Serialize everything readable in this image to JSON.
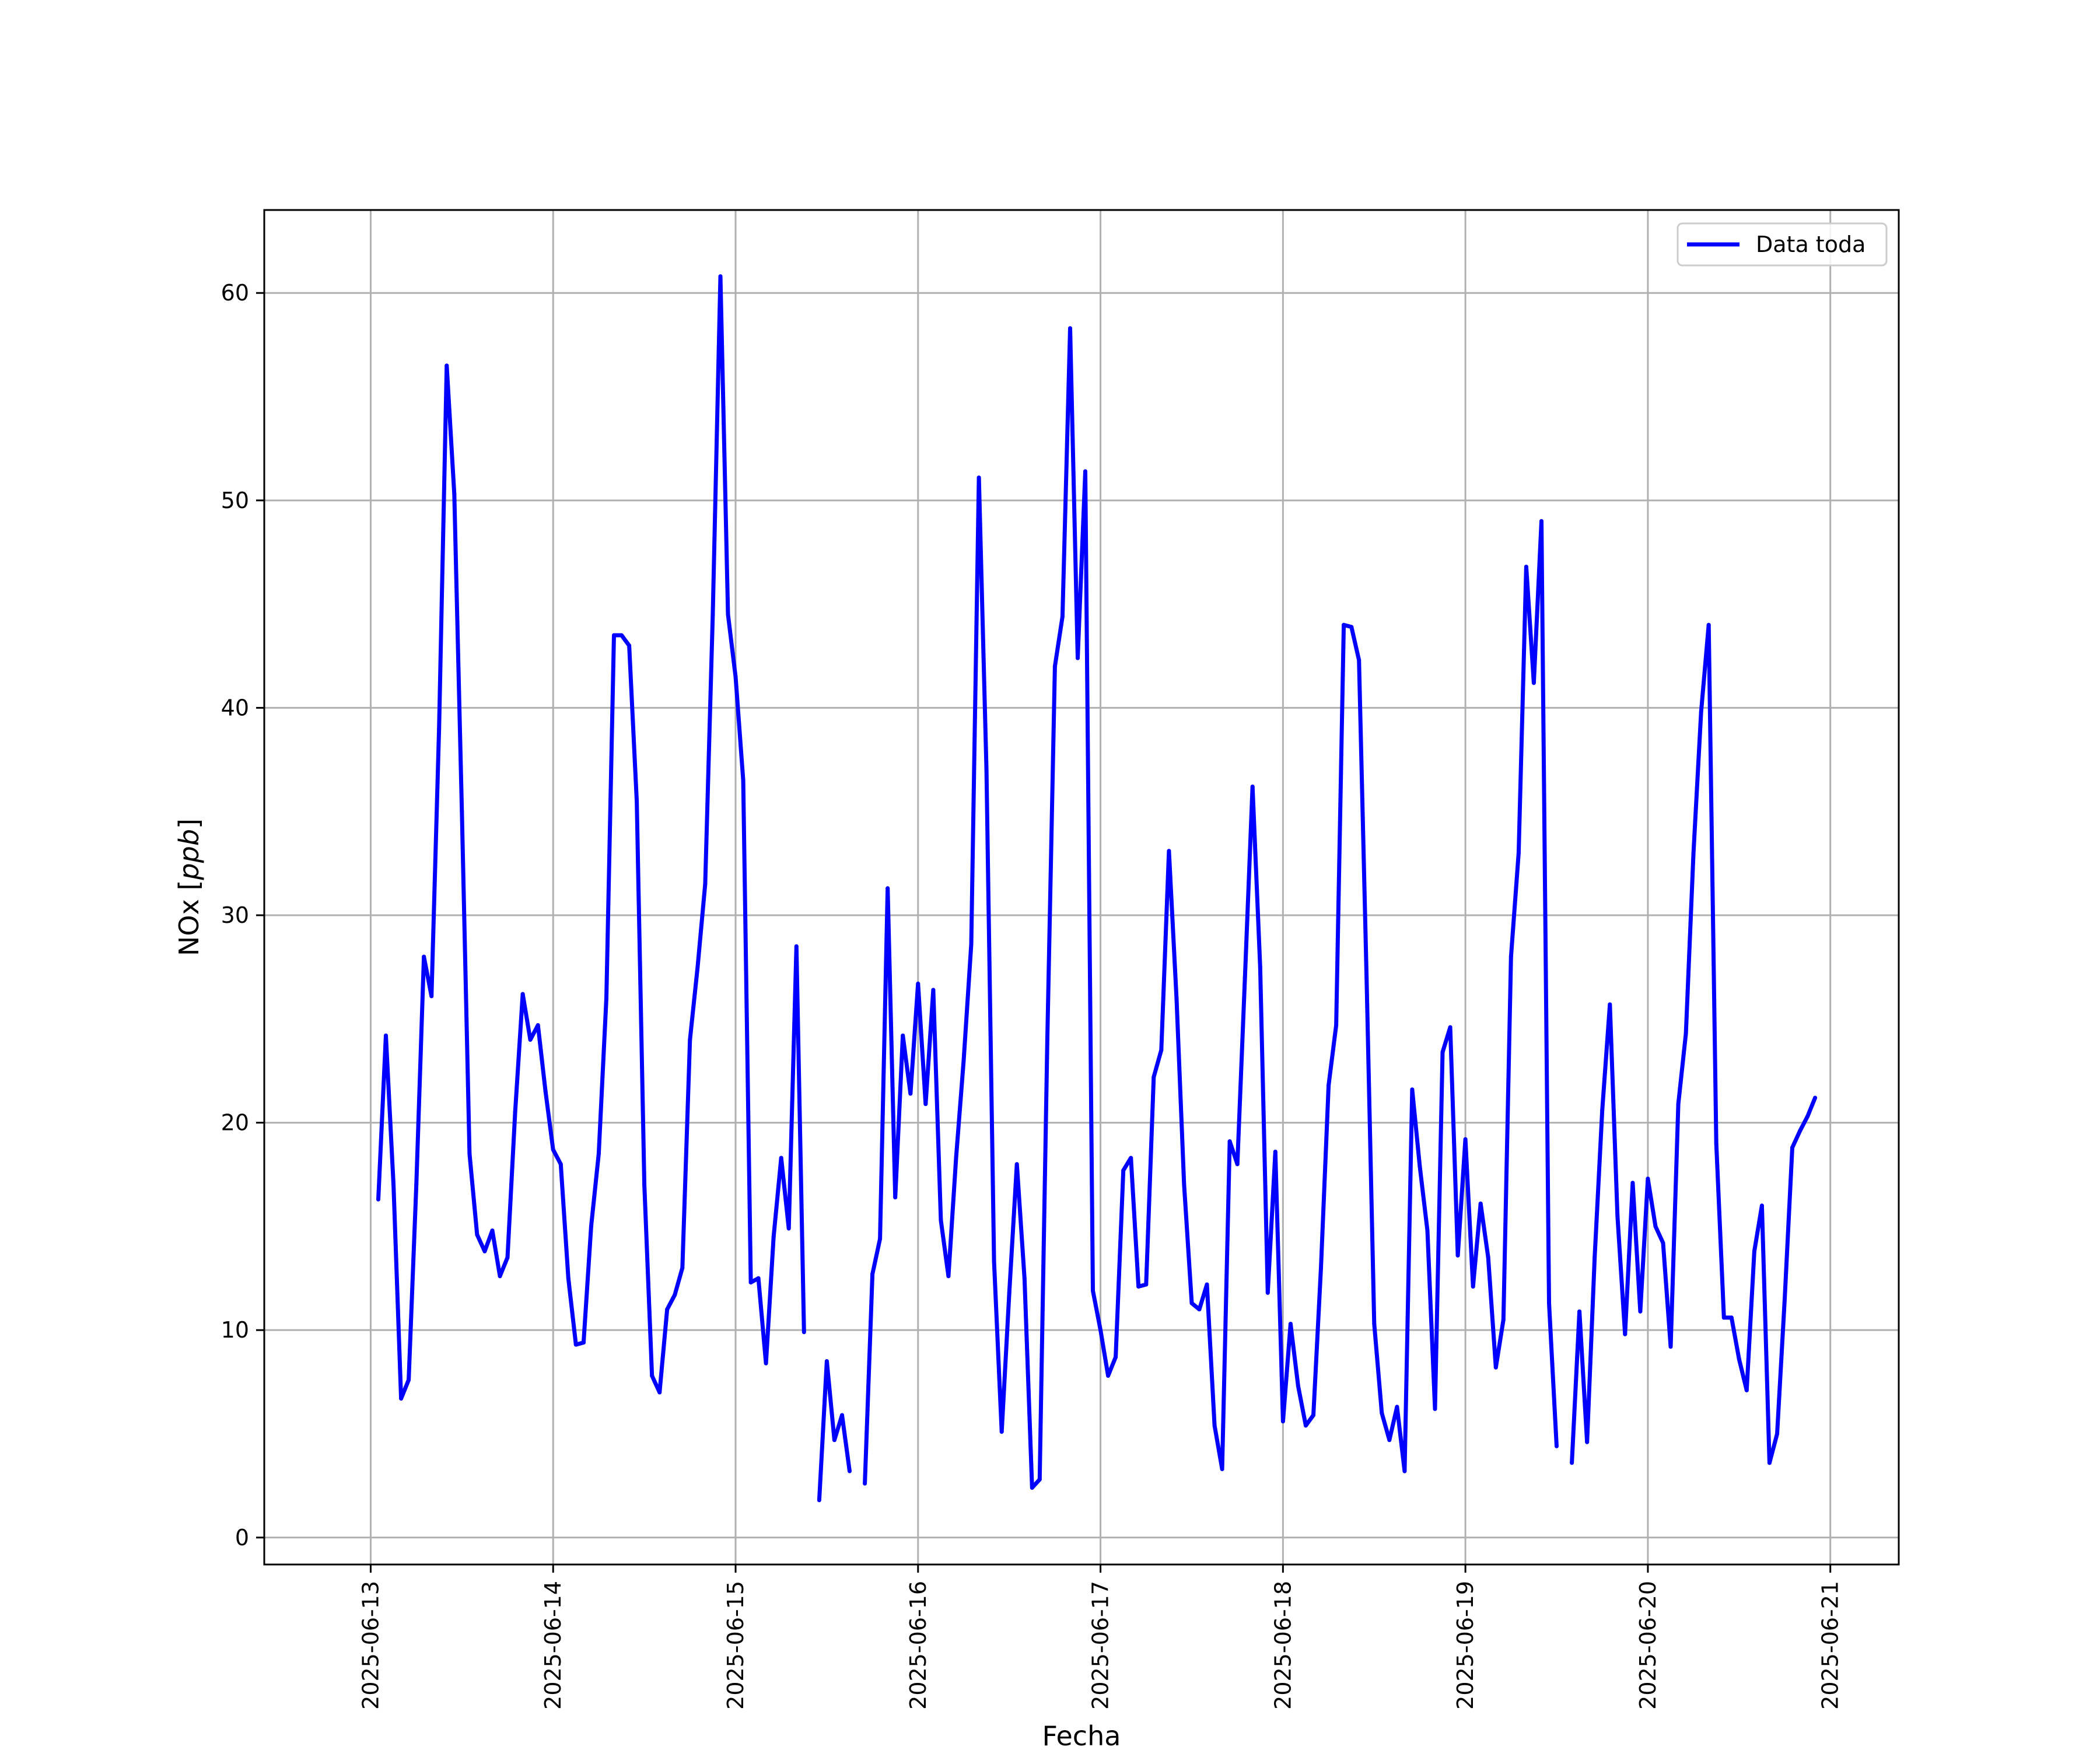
{
  "chart_data": {
    "type": "line",
    "xlabel": "Fecha",
    "ylabel_main": "NOx",
    "ylabel_unit": "ppb",
    "x_ticks": [
      "2025-06-13",
      "2025-06-14",
      "2025-06-15",
      "2025-06-16",
      "2025-06-17",
      "2025-06-18",
      "2025-06-19",
      "2025-06-20",
      "2025-06-21"
    ],
    "y_ticks": [
      0,
      10,
      20,
      30,
      40,
      50,
      60
    ],
    "xlim": [
      "2025-06-12T10:00",
      "2025-06-21T09:00"
    ],
    "ylim": [
      -1.3,
      64
    ],
    "grid": true,
    "legend": "top-right",
    "series": [
      {
        "name": "Data toda",
        "color": "#0000ff",
        "points": [
          [
            "2025-06-13T01:00",
            16.3
          ],
          [
            "2025-06-13T02:00",
            24.2
          ],
          [
            "2025-06-13T03:00",
            17.0
          ],
          [
            "2025-06-13T04:00",
            6.7
          ],
          [
            "2025-06-13T05:00",
            7.6
          ],
          [
            "2025-06-13T06:00",
            17.0
          ],
          [
            "2025-06-13T07:00",
            28.0
          ],
          [
            "2025-06-13T08:00",
            26.1
          ],
          [
            "2025-06-13T09:00",
            39.0
          ],
          [
            "2025-06-13T10:00",
            56.5
          ],
          [
            "2025-06-13T11:00",
            50.3
          ],
          [
            "2025-06-13T12:00",
            35.0
          ],
          [
            "2025-06-13T13:00",
            18.5
          ],
          [
            "2025-06-13T14:00",
            14.6
          ],
          [
            "2025-06-13T15:00",
            13.8
          ],
          [
            "2025-06-13T16:00",
            14.8
          ],
          [
            "2025-06-13T17:00",
            12.6
          ],
          [
            "2025-06-13T18:00",
            13.5
          ],
          [
            "2025-06-13T19:00",
            20.5
          ],
          [
            "2025-06-13T20:00",
            26.2
          ],
          [
            "2025-06-13T21:00",
            24.0
          ],
          [
            "2025-06-13T22:00",
            24.7
          ],
          [
            "2025-06-13T23:00",
            21.5
          ],
          [
            "2025-06-14T00:00",
            18.7
          ],
          [
            "2025-06-14T01:00",
            18.0
          ],
          [
            "2025-06-14T02:00",
            12.5
          ],
          [
            "2025-06-14T03:00",
            9.3
          ],
          [
            "2025-06-14T04:00",
            9.4
          ],
          [
            "2025-06-14T05:00",
            15.0
          ],
          [
            "2025-06-14T06:00",
            18.5
          ],
          [
            "2025-06-14T07:00",
            26.0
          ],
          [
            "2025-06-14T08:00",
            43.5
          ],
          [
            "2025-06-14T09:00",
            43.5
          ],
          [
            "2025-06-14T10:00",
            43.0
          ],
          [
            "2025-06-14T11:00",
            35.5
          ],
          [
            "2025-06-14T12:00",
            17.0
          ],
          [
            "2025-06-14T13:00",
            7.8
          ],
          [
            "2025-06-14T14:00",
            7.0
          ],
          [
            "2025-06-14T15:00",
            11.0
          ],
          [
            "2025-06-14T16:00",
            11.7
          ],
          [
            "2025-06-14T17:00",
            13.0
          ],
          [
            "2025-06-14T18:00",
            24.0
          ],
          [
            "2025-06-14T19:00",
            27.5
          ],
          [
            "2025-06-14T20:00",
            31.5
          ],
          [
            "2025-06-14T21:00",
            44.5
          ],
          [
            "2025-06-14T22:00",
            60.8
          ],
          [
            "2025-06-14T23:00",
            44.5
          ],
          [
            "2025-06-15T00:00",
            41.5
          ],
          [
            "2025-06-15T01:00",
            36.5
          ],
          [
            "2025-06-15T02:00",
            12.3
          ],
          [
            "2025-06-15T03:00",
            12.5
          ],
          [
            "2025-06-15T04:00",
            8.4
          ],
          [
            "2025-06-15T05:00",
            14.5
          ],
          [
            "2025-06-15T06:00",
            18.3
          ],
          [
            "2025-06-15T07:00",
            14.9
          ],
          [
            "2025-06-15T08:00",
            28.5
          ],
          [
            "2025-06-15T09:00",
            9.9
          ],
          null,
          [
            "2025-06-15T11:00",
            1.8
          ],
          [
            "2025-06-15T12:00",
            8.5
          ],
          [
            "2025-06-15T13:00",
            4.7
          ],
          [
            "2025-06-15T14:00",
            5.9
          ],
          [
            "2025-06-15T15:00",
            3.2
          ],
          null,
          [
            "2025-06-15T17:00",
            2.6
          ],
          [
            "2025-06-15T18:00",
            12.7
          ],
          [
            "2025-06-15T19:00",
            14.4
          ],
          [
            "2025-06-15T20:00",
            31.3
          ],
          [
            "2025-06-15T21:00",
            16.4
          ],
          [
            "2025-06-15T22:00",
            24.2
          ],
          [
            "2025-06-15T23:00",
            21.4
          ],
          [
            "2025-06-16T00:00",
            26.7
          ],
          [
            "2025-06-16T01:00",
            20.9
          ],
          [
            "2025-06-16T02:00",
            26.4
          ],
          [
            "2025-06-16T03:00",
            15.3
          ],
          [
            "2025-06-16T04:00",
            12.6
          ],
          [
            "2025-06-16T05:00",
            18.3
          ],
          [
            "2025-06-16T06:00",
            23.0
          ],
          [
            "2025-06-16T07:00",
            28.6
          ],
          [
            "2025-06-16T08:00",
            51.1
          ],
          [
            "2025-06-16T09:00",
            37.0
          ],
          [
            "2025-06-16T10:00",
            13.3
          ],
          [
            "2025-06-16T11:00",
            5.1
          ],
          [
            "2025-06-16T12:00",
            11.8
          ],
          [
            "2025-06-16T13:00",
            18.0
          ],
          [
            "2025-06-16T14:00",
            12.5
          ],
          [
            "2025-06-16T15:00",
            2.4
          ],
          [
            "2025-06-16T16:00",
            2.8
          ],
          [
            "2025-06-16T17:00",
            24.0
          ],
          [
            "2025-06-16T18:00",
            42.0
          ],
          [
            "2025-06-16T19:00",
            44.4
          ],
          [
            "2025-06-16T20:00",
            58.3
          ],
          [
            "2025-06-16T21:00",
            42.4
          ],
          [
            "2025-06-16T22:00",
            51.4
          ],
          [
            "2025-06-16T23:00",
            11.9
          ],
          [
            "2025-06-17T00:00",
            10.0
          ],
          [
            "2025-06-17T01:00",
            7.8
          ],
          [
            "2025-06-17T02:00",
            8.7
          ],
          [
            "2025-06-17T03:00",
            17.7
          ],
          [
            "2025-06-17T04:00",
            18.3
          ],
          [
            "2025-06-17T05:00",
            12.1
          ],
          [
            "2025-06-17T06:00",
            12.2
          ],
          [
            "2025-06-17T07:00",
            22.2
          ],
          [
            "2025-06-17T08:00",
            23.5
          ],
          [
            "2025-06-17T09:00",
            33.1
          ],
          [
            "2025-06-17T10:00",
            26.0
          ],
          [
            "2025-06-17T11:00",
            17.0
          ],
          [
            "2025-06-17T12:00",
            11.3
          ],
          [
            "2025-06-17T13:00",
            11.0
          ],
          [
            "2025-06-17T14:00",
            12.2
          ],
          [
            "2025-06-17T15:00",
            5.4
          ],
          [
            "2025-06-17T16:00",
            3.3
          ],
          [
            "2025-06-17T17:00",
            19.1
          ],
          [
            "2025-06-17T18:00",
            18.0
          ],
          [
            "2025-06-17T19:00",
            27.0
          ],
          [
            "2025-06-17T20:00",
            36.2
          ],
          [
            "2025-06-17T21:00",
            27.5
          ],
          [
            "2025-06-17T22:00",
            11.8
          ],
          [
            "2025-06-17T23:00",
            18.6
          ],
          [
            "2025-06-18T00:00",
            5.6
          ],
          [
            "2025-06-18T01:00",
            10.3
          ],
          [
            "2025-06-18T02:00",
            7.3
          ],
          [
            "2025-06-18T03:00",
            5.4
          ],
          [
            "2025-06-18T04:00",
            5.9
          ],
          [
            "2025-06-18T05:00",
            13.0
          ],
          [
            "2025-06-18T06:00",
            21.8
          ],
          [
            "2025-06-18T07:00",
            24.7
          ],
          [
            "2025-06-18T08:00",
            44.0
          ],
          [
            "2025-06-18T09:00",
            43.9
          ],
          [
            "2025-06-18T10:00",
            42.3
          ],
          [
            "2025-06-18T11:00",
            27.0
          ],
          [
            "2025-06-18T12:00",
            10.3
          ],
          [
            "2025-06-18T13:00",
            6.0
          ],
          [
            "2025-06-18T14:00",
            4.7
          ],
          [
            "2025-06-18T15:00",
            6.3
          ],
          [
            "2025-06-18T16:00",
            3.2
          ],
          [
            "2025-06-18T17:00",
            21.6
          ],
          [
            "2025-06-18T18:00",
            17.9
          ],
          [
            "2025-06-18T19:00",
            14.8
          ],
          [
            "2025-06-18T20:00",
            6.2
          ],
          [
            "2025-06-18T21:00",
            23.4
          ],
          [
            "2025-06-18T22:00",
            24.6
          ],
          [
            "2025-06-18T23:00",
            13.6
          ],
          [
            "2025-06-19T00:00",
            19.2
          ],
          [
            "2025-06-19T01:00",
            12.1
          ],
          [
            "2025-06-19T02:00",
            16.1
          ],
          [
            "2025-06-19T03:00",
            13.5
          ],
          [
            "2025-06-19T04:00",
            8.2
          ],
          [
            "2025-06-19T05:00",
            10.5
          ],
          [
            "2025-06-19T06:00",
            28.0
          ],
          [
            "2025-06-19T07:00",
            33.0
          ],
          [
            "2025-06-19T08:00",
            46.8
          ],
          [
            "2025-06-19T09:00",
            41.2
          ],
          [
            "2025-06-19T10:00",
            49.0
          ],
          [
            "2025-06-19T11:00",
            11.3
          ],
          [
            "2025-06-19T12:00",
            4.4
          ],
          null,
          [
            "2025-06-19T14:00",
            3.6
          ],
          [
            "2025-06-19T15:00",
            10.9
          ],
          [
            "2025-06-19T16:00",
            4.6
          ],
          [
            "2025-06-19T17:00",
            13.5
          ],
          [
            "2025-06-19T18:00",
            20.6
          ],
          [
            "2025-06-19T19:00",
            25.7
          ],
          [
            "2025-06-19T20:00",
            15.5
          ],
          [
            "2025-06-19T21:00",
            9.8
          ],
          [
            "2025-06-19T22:00",
            17.1
          ],
          [
            "2025-06-19T23:00",
            10.9
          ],
          [
            "2025-06-20T00:00",
            17.3
          ],
          [
            "2025-06-20T01:00",
            15.0
          ],
          [
            "2025-06-20T02:00",
            14.2
          ],
          [
            "2025-06-20T03:00",
            9.2
          ],
          [
            "2025-06-20T04:00",
            20.9
          ],
          [
            "2025-06-20T05:00",
            24.3
          ],
          [
            "2025-06-20T06:00",
            33.0
          ],
          [
            "2025-06-20T07:00",
            39.8
          ],
          [
            "2025-06-20T08:00",
            44.0
          ],
          [
            "2025-06-20T09:00",
            19.0
          ],
          [
            "2025-06-20T10:00",
            10.6
          ],
          [
            "2025-06-20T11:00",
            10.6
          ],
          [
            "2025-06-20T12:00",
            8.6
          ],
          [
            "2025-06-20T13:00",
            7.1
          ],
          [
            "2025-06-20T14:00",
            13.8
          ],
          [
            "2025-06-20T15:00",
            16.0
          ],
          [
            "2025-06-20T16:00",
            3.6
          ],
          [
            "2025-06-20T17:00",
            5.0
          ],
          [
            "2025-06-20T18:00",
            11.5
          ],
          [
            "2025-06-20T19:00",
            18.8
          ],
          [
            "2025-06-20T20:00",
            19.6
          ],
          [
            "2025-06-20T21:00",
            20.3
          ],
          [
            "2025-06-20T22:00",
            21.2
          ]
        ]
      }
    ]
  }
}
